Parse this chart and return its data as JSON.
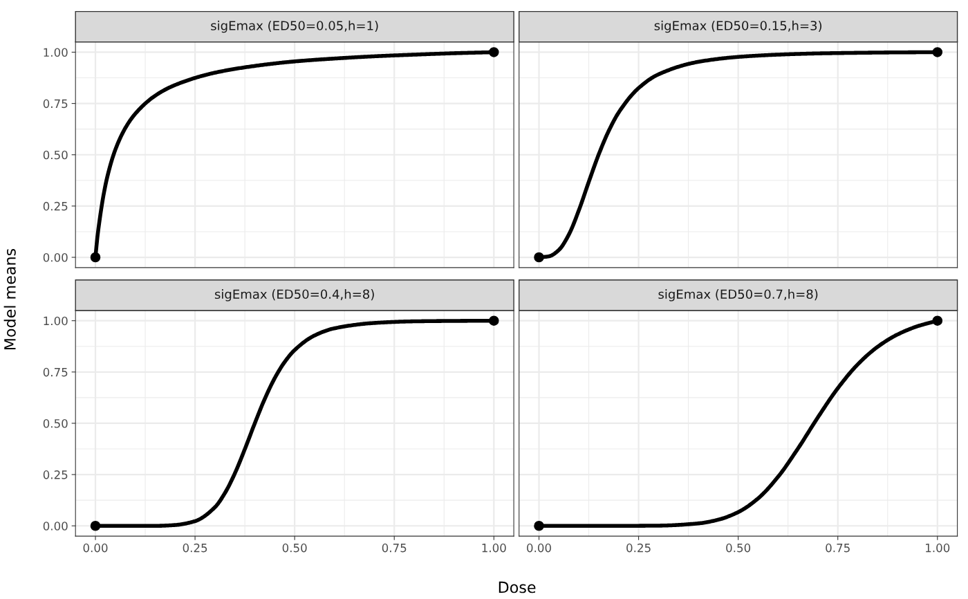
{
  "chart_data": [
    {
      "type": "line",
      "title": "sigEmax (ED50=0.05,h=1)",
      "ylabel": "Model means",
      "tick_labels": "y",
      "grid": true,
      "xlim": [
        -0.05,
        1.05
      ],
      "ylim": [
        -0.05,
        1.05
      ],
      "xticks": [
        {
          "value": 0,
          "label": null
        },
        {
          "value": 0.25,
          "label": null
        },
        {
          "value": 0.5,
          "label": null
        },
        {
          "value": 0.75,
          "label": null
        },
        {
          "value": 1,
          "label": null
        }
      ],
      "yticks": [
        {
          "value": 0,
          "label": "0.00"
        },
        {
          "value": 0.25,
          "label": "0.25"
        },
        {
          "value": 0.5,
          "label": "0.50"
        },
        {
          "value": 0.75,
          "label": "0.75"
        },
        {
          "value": 1,
          "label": "1.00"
        }
      ],
      "series": [
        {
          "color": "#000000",
          "x": [
            0,
            0.005,
            0.01,
            0.02,
            0.03,
            0.05,
            0.075,
            0.1,
            0.15,
            0.2,
            0.3,
            0.4,
            0.5,
            0.6,
            0.7,
            0.8,
            0.9,
            1
          ],
          "values": [
            0,
            0.1,
            0.175,
            0.3,
            0.394,
            0.525,
            0.63,
            0.7,
            0.788,
            0.84,
            0.9,
            0.933,
            0.955,
            0.969,
            0.98,
            0.988,
            0.995,
            1
          ]
        },
        {
          "type": "scatter",
          "marker": "circle",
          "color": "#000000",
          "x": [
            0,
            1
          ],
          "values": [
            0,
            1
          ]
        }
      ]
    },
    {
      "type": "line",
      "title": "sigEmax (ED50=0.15,h=3)",
      "tick_labels": false,
      "grid": true,
      "xlim": [
        -0.05,
        1.05
      ],
      "ylim": [
        -0.05,
        1.05
      ],
      "xticks": [
        {
          "value": 0,
          "label": null
        },
        {
          "value": 0.25,
          "label": null
        },
        {
          "value": 0.5,
          "label": null
        },
        {
          "value": 0.75,
          "label": null
        },
        {
          "value": 1,
          "label": null
        }
      ],
      "yticks": [
        {
          "value": 0,
          "label": null
        },
        {
          "value": 0.25,
          "label": null
        },
        {
          "value": 0.5,
          "label": null
        },
        {
          "value": 0.75,
          "label": null
        },
        {
          "value": 1,
          "label": null
        }
      ],
      "series": [
        {
          "color": "#000000",
          "x": [
            0,
            0.025,
            0.05,
            0.075,
            0.1,
            0.125,
            0.15,
            0.175,
            0.2,
            0.25,
            0.3,
            0.4,
            0.5,
            0.6,
            0.7,
            0.8,
            0.9,
            1
          ],
          "values": [
            0,
            0.005,
            0.036,
            0.111,
            0.229,
            0.368,
            0.502,
            0.616,
            0.706,
            0.825,
            0.892,
            0.953,
            0.977,
            0.988,
            0.994,
            0.997,
            0.999,
            1
          ]
        },
        {
          "type": "scatter",
          "marker": "circle",
          "color": "#000000",
          "x": [
            0,
            1
          ],
          "values": [
            0,
            1
          ]
        }
      ]
    },
    {
      "type": "line",
      "title": "sigEmax (ED50=0.4,h=8)",
      "xlabel": "Dose",
      "grid": true,
      "xlim": [
        -0.05,
        1.05
      ],
      "ylim": [
        -0.05,
        1.05
      ],
      "xticks": [
        {
          "value": 0,
          "label": "0.00"
        },
        {
          "value": 0.25,
          "label": "0.25"
        },
        {
          "value": 0.5,
          "label": "0.50"
        },
        {
          "value": 0.75,
          "label": "0.75"
        },
        {
          "value": 1,
          "label": "1.00"
        }
      ],
      "yticks": [
        {
          "value": 0,
          "label": "0.00"
        },
        {
          "value": 0.25,
          "label": "0.25"
        },
        {
          "value": 0.5,
          "label": "0.50"
        },
        {
          "value": 0.75,
          "label": "0.75"
        },
        {
          "value": 1,
          "label": "1.00"
        }
      ],
      "series": [
        {
          "color": "#000000",
          "x": [
            0,
            0.1,
            0.15,
            0.2,
            0.25,
            0.3,
            0.325,
            0.35,
            0.375,
            0.4,
            0.425,
            0.45,
            0.475,
            0.5,
            0.55,
            0.6,
            0.7,
            0.8,
            0.9,
            1
          ],
          "values": [
            0,
            0,
            0,
            0.004,
            0.023,
            0.091,
            0.16,
            0.256,
            0.374,
            0.5,
            0.619,
            0.72,
            0.799,
            0.857,
            0.928,
            0.963,
            0.989,
            0.997,
            0.999,
            1
          ]
        },
        {
          "type": "scatter",
          "marker": "circle",
          "color": "#000000",
          "x": [
            0,
            1
          ],
          "values": [
            0,
            1
          ]
        }
      ]
    },
    {
      "type": "line",
      "title": "sigEmax (ED50=0.7,h=8)",
      "tick_labels": "x",
      "grid": true,
      "xlim": [
        -0.05,
        1.05
      ],
      "ylim": [
        -0.05,
        1.05
      ],
      "xticks": [
        {
          "value": 0,
          "label": "0.00"
        },
        {
          "value": 0.25,
          "label": "0.25"
        },
        {
          "value": 0.5,
          "label": "0.50"
        },
        {
          "value": 0.75,
          "label": "0.75"
        },
        {
          "value": 1,
          "label": "1.00"
        }
      ],
      "yticks": [
        {
          "value": 0,
          "label": null
        },
        {
          "value": 0.25,
          "label": null
        },
        {
          "value": 0.5,
          "label": null
        },
        {
          "value": 0.75,
          "label": null
        },
        {
          "value": 1,
          "label": null
        }
      ],
      "series": [
        {
          "color": "#000000",
          "x": [
            0,
            0.2,
            0.3,
            0.4,
            0.45,
            0.5,
            0.55,
            0.6,
            0.65,
            0.7,
            0.75,
            0.8,
            0.85,
            0.9,
            0.95,
            1
          ],
          "values": [
            0,
            0,
            0.001,
            0.012,
            0.03,
            0.067,
            0.134,
            0.239,
            0.377,
            0.529,
            0.671,
            0.787,
            0.873,
            0.933,
            0.973,
            1
          ]
        },
        {
          "type": "scatter",
          "marker": "circle",
          "color": "#000000",
          "x": [
            0,
            1
          ],
          "values": [
            0,
            1
          ]
        }
      ]
    }
  ]
}
